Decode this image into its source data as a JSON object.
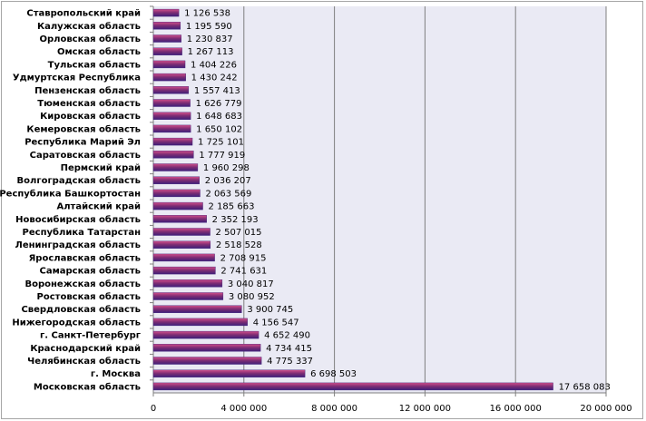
{
  "chart_data": {
    "type": "bar",
    "orientation": "horizontal",
    "title": "",
    "xlabel": "",
    "ylabel": "",
    "xlim": [
      0,
      20000000
    ],
    "grid": true,
    "legend": "none",
    "colors": {
      "plot_background": "#eaeaf4",
      "bar": "#7b2c73",
      "bar_light": "#d24f8a",
      "bar_dark": "#3f1f7a",
      "gridline": "#7f7f7f",
      "frame": "#a6a6a6"
    },
    "x_ticks": [
      0,
      4000000,
      8000000,
      12000000,
      16000000,
      20000000
    ],
    "x_tick_labels": [
      "0",
      "4 000 000",
      "8 000 000",
      "12 000 000",
      "16 000 000",
      "20 000 000"
    ],
    "categories": [
      "Ставропольский  край",
      "Калужская  область",
      "Орловская  область",
      "Омская  область",
      "Тульская  область",
      "Удмуртская  Республика",
      "Пензенская область",
      "Тюменская область",
      "Кировская  область",
      "Кемеровская область",
      "Республика  Марий  Эл",
      "Саратовская  область",
      "Пермский  край",
      "Волгоградская  область",
      "Республика Башкортостан",
      "Алтайский  край",
      "Новосибирская  область",
      "Республика  Татарстан",
      "Ленинградская  область",
      "Ярославская  область",
      "Самарская  область",
      "Воронежская  область",
      "Ростовская  область",
      "Свердловская  область",
      "Нижегородская область",
      "г. Санкт-Петербург",
      "Краснодарский  край",
      "Челябинская  область",
      "г. Москва",
      "Московская  область"
    ],
    "values": [
      1126538,
      1195590,
      1230837,
      1267113,
      1404226,
      1430242,
      1557413,
      1626779,
      1648683,
      1650102,
      1725101,
      1777919,
      1960298,
      2036207,
      2063569,
      2185663,
      2352193,
      2507015,
      2518528,
      2708915,
      2741631,
      3040817,
      3080952,
      3900745,
      4156547,
      4652490,
      4734415,
      4775337,
      6698503,
      17658083
    ],
    "value_labels": [
      "1 126 538",
      "1 195 590",
      "1 230 837",
      "1 267 113",
      "1 404 226",
      "1 430 242",
      "1 557 413",
      "1 626 779",
      "1 648 683",
      "1 650 102",
      "1 725 101",
      "1 777 919",
      "1 960 298",
      "2 036 207",
      "2 063 569",
      "2 185 663",
      "2 352 193",
      "2 507 015",
      "2 518 528",
      "2 708 915",
      "2 741 631",
      "3 040 817",
      "3 080 952",
      "3 900 745",
      "4 156 547",
      "4 652 490",
      "4 734 415",
      "4 775 337",
      "6 698 503",
      "17 658 083"
    ]
  }
}
